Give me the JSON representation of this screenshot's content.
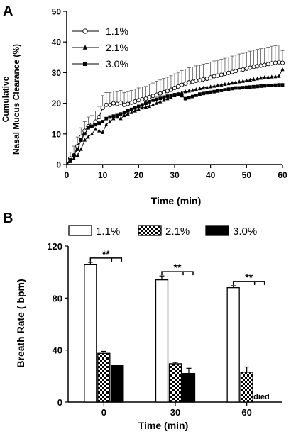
{
  "chart_data": [
    {
      "panel": "A",
      "type": "line",
      "ylabel": [
        "Cumulative",
        "Nasal Mucus Clearance (%)"
      ],
      "xlabel": "Time (min)",
      "xlim": [
        0,
        60
      ],
      "ylim": [
        0,
        50
      ],
      "xticks": [
        "0",
        "10",
        "20",
        "30",
        "40",
        "50",
        "60"
      ],
      "yticks": [
        "0",
        "10",
        "20",
        "30",
        "40",
        "50"
      ],
      "legend_position": "top-left",
      "x": [
        1,
        2,
        3,
        4,
        5,
        6,
        7,
        8,
        9,
        10,
        11,
        12,
        13,
        14,
        15,
        16,
        17,
        18,
        19,
        20,
        21,
        22,
        23,
        24,
        25,
        26,
        27,
        28,
        29,
        30,
        31,
        32,
        33,
        34,
        35,
        36,
        37,
        38,
        39,
        40,
        41,
        42,
        43,
        44,
        45,
        46,
        47,
        48,
        49,
        50,
        51,
        52,
        53,
        54,
        55,
        56,
        57,
        58,
        59,
        60
      ],
      "series": [
        {
          "name": "1.1%",
          "marker": "open-circle",
          "values": [
            2,
            3,
            6,
            9,
            11,
            12.5,
            13,
            14,
            15.5,
            18.5,
            19.5,
            19.5,
            20,
            19.8,
            20.2,
            19.5,
            19.8,
            20.2,
            20.6,
            21,
            21.3,
            21.5,
            22,
            22.4,
            22.8,
            23.2,
            23.6,
            24,
            24.4,
            25,
            25.5,
            26,
            26.4,
            26.8,
            27,
            27.3,
            27.5,
            27.8,
            28,
            28.4,
            28.8,
            29,
            29.3,
            29.6,
            29.9,
            30.2,
            30.5,
            30.8,
            31,
            31.3,
            31.6,
            31.9,
            32.1,
            32.3,
            32.5,
            32.8,
            33,
            33.2,
            33.4,
            33.2
          ],
          "errors": [
            2,
            3,
            3,
            3,
            3,
            3,
            3,
            3.5,
            3.5,
            4,
            4,
            4,
            4,
            4,
            4,
            4,
            4,
            4,
            4,
            4,
            4,
            4,
            4.2,
            4.2,
            4.4,
            4.4,
            4.5,
            4.5,
            4.6,
            4.6,
            4.6,
            4.7,
            4.7,
            4.8,
            4.8,
            4.9,
            4.9,
            5,
            5,
            5,
            5,
            5,
            5.1,
            5.1,
            5.2,
            5.2,
            5.2,
            5.3,
            5.3,
            5.3,
            5.4,
            5.4,
            5.5,
            5.5,
            5.5,
            5.5,
            5.6,
            5.6,
            5.6,
            4
          ]
        },
        {
          "name": "2.1%",
          "marker": "filled-triangle",
          "values": [
            1,
            2,
            3,
            5,
            8,
            9,
            10,
            11.5,
            11,
            10.5,
            13,
            14,
            15,
            15.5,
            15,
            16,
            16.5,
            17,
            17.5,
            18,
            18.5,
            18.8,
            19,
            19.5,
            20,
            20.5,
            21,
            21.5,
            22,
            22.5,
            23,
            23.5,
            23.8,
            24,
            24.2,
            24.5,
            24.8,
            25,
            25.2,
            25.4,
            25.6,
            25.8,
            26,
            26.2,
            26.4,
            26.6,
            26.8,
            27,
            27.2,
            27.4,
            27.6,
            27.8,
            28,
            28.2,
            28.4,
            28.5,
            28.6,
            28.7,
            28.8,
            31
          ]
        },
        {
          "name": "3.0%",
          "marker": "filled-square",
          "values": [
            1.5,
            3,
            5,
            8,
            10,
            12,
            12.5,
            13,
            13.5,
            14,
            15,
            15.5,
            15.8,
            16,
            16.5,
            17,
            17.5,
            18,
            18.5,
            19,
            19.5,
            20,
            20.5,
            21,
            21.3,
            21.6,
            22,
            22.3,
            22.5,
            22.8,
            23,
            22.5,
            21.5,
            21.8,
            22.2,
            22.6,
            23,
            23.2,
            23.4,
            23.6,
            23.8,
            24,
            24.2,
            24.4,
            24.6,
            24.8,
            25,
            25,
            25.1,
            25.2,
            25.3,
            25.4,
            25.5,
            25.6,
            25.7,
            25.8,
            25.8,
            25.9,
            26,
            26
          ]
        }
      ]
    },
    {
      "panel": "B",
      "type": "bar",
      "ylabel": "Breath Rate ( bpm)",
      "xlabel": "Time (min)",
      "categories": [
        "0",
        "30",
        "60"
      ],
      "ylim": [
        0,
        120
      ],
      "yticks": [
        "0",
        "40",
        "80",
        "120"
      ],
      "legend_position": "top",
      "significance": "**",
      "annotation": "died",
      "series": [
        {
          "name": "1.1%",
          "fill": "white",
          "values": [
            106,
            94,
            88
          ],
          "errors": [
            1.5,
            3,
            1.5
          ]
        },
        {
          "name": "2.1%",
          "fill": "checker",
          "values": [
            37.5,
            29.5,
            23
          ],
          "errors": [
            1.5,
            1,
            4
          ]
        },
        {
          "name": "3.0%",
          "fill": "black",
          "values": [
            28,
            22,
            null
          ],
          "errors": [
            0.5,
            4,
            null
          ]
        }
      ]
    }
  ],
  "panel_labels": {
    "a": "A",
    "b": "B"
  }
}
